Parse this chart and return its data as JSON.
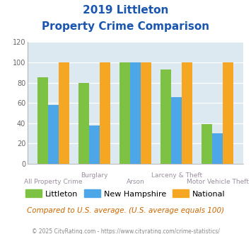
{
  "title_line1": "2019 Littleton",
  "title_line2": "Property Crime Comparison",
  "categories": [
    "All Property Crime",
    "Burglary",
    "Arson",
    "Larceny & Theft",
    "Motor Vehicle Theft"
  ],
  "littleton": [
    85,
    80,
    100,
    93,
    39
  ],
  "new_hampshire": [
    58,
    38,
    100,
    66,
    30
  ],
  "national": [
    100,
    100,
    100,
    100,
    100
  ],
  "colors": {
    "littleton": "#7dc242",
    "new_hampshire": "#4da6e8",
    "national": "#f5a623"
  },
  "ylim": [
    0,
    120
  ],
  "yticks": [
    0,
    20,
    40,
    60,
    80,
    100,
    120
  ],
  "background_color": "#dce9f0",
  "title_color": "#1a56b0",
  "xlabel_color": "#9b8ea0",
  "legend_labels": [
    "Littleton",
    "New Hampshire",
    "National"
  ],
  "note_text": "Compared to U.S. average. (U.S. average equals 100)",
  "footer_text": "© 2025 CityRating.com - https://www.cityrating.com/crime-statistics/",
  "note_color": "#cc6600",
  "footer_color": "#888888"
}
